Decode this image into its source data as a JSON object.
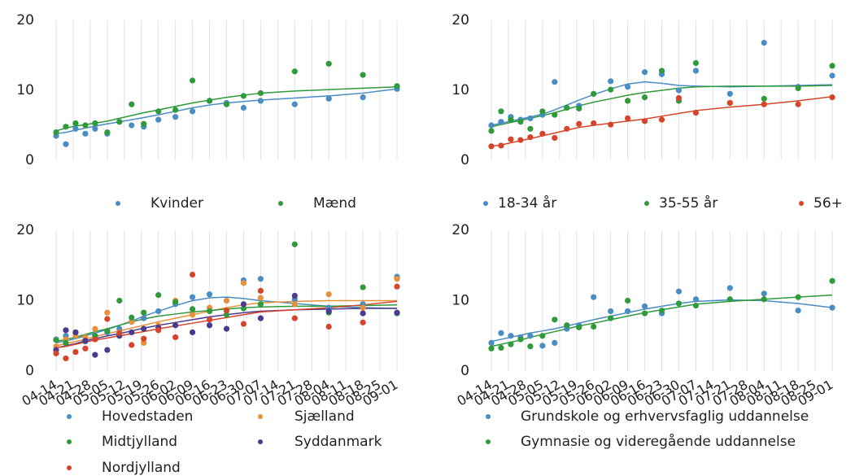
{
  "chart_data": [
    {
      "type": "scatter",
      "xlim": [
        "04-11",
        "09-05"
      ],
      "ylim": [
        0,
        20
      ],
      "yticks": [
        0,
        10,
        20
      ],
      "xticks": [
        "04-14",
        "04-21",
        "04-28",
        "05-05",
        "05-12",
        "05-19",
        "05-26",
        "06-02",
        "06-09",
        "06-16",
        "06-23",
        "06-30",
        "07-07",
        "07-14",
        "07-21",
        "07-28",
        "08-04",
        "08-11",
        "08-18",
        "08-25",
        "09-01"
      ],
      "x": [
        "04-14",
        "04-18",
        "04-22",
        "04-26",
        "04-30",
        "05-05",
        "05-10",
        "05-15",
        "05-20",
        "05-26",
        "06-02",
        "06-09",
        "06-16",
        "06-23",
        "06-30",
        "07-07",
        "07-21",
        "08-04",
        "08-18",
        "09-01"
      ],
      "series": [
        {
          "name": "Kvinder",
          "color": "#4a8cc4",
          "values": [
            3.5,
            2.3,
            4.5,
            3.8,
            4.5,
            3.8,
            5.5,
            5,
            4.8,
            5.8,
            6.2,
            7,
            8.5,
            8.2,
            7.5,
            8.5,
            8,
            8.8,
            9,
            10.2
          ],
          "trend": [
            3.8,
            4.0,
            4.3,
            4.6,
            4.9,
            5.2,
            5.5,
            5.8,
            6.1,
            6.5,
            7.0,
            7.5,
            7.9,
            8.2,
            8.4,
            8.6,
            8.9,
            9.2,
            9.6,
            10.2
          ]
        },
        {
          "name": "Mænd",
          "color": "#2e9a3a",
          "values": [
            4,
            4.8,
            5.3,
            5,
            5.3,
            4,
            5.5,
            8,
            5.2,
            7,
            7.2,
            11.4,
            8.5,
            8,
            9.2,
            9.6,
            12.7,
            13.8,
            12.2,
            10.6
          ],
          "trend": [
            4.2,
            4.6,
            4.9,
            5.1,
            5.3,
            5.6,
            6.0,
            6.4,
            6.8,
            7.2,
            7.7,
            8.2,
            8.6,
            9.0,
            9.3,
            9.6,
            9.9,
            10.1,
            10.3,
            10.5
          ]
        }
      ]
    },
    {
      "type": "scatter",
      "xlim": [
        "04-11",
        "09-05"
      ],
      "ylim": [
        0,
        20
      ],
      "yticks": [
        0,
        10,
        20
      ],
      "xticks": [
        "04-14",
        "04-21",
        "04-28",
        "05-05",
        "05-12",
        "05-19",
        "05-26",
        "06-02",
        "06-09",
        "06-16",
        "06-23",
        "06-30",
        "07-07",
        "07-14",
        "07-21",
        "07-28",
        "08-04",
        "08-11",
        "08-18",
        "08-25",
        "09-01"
      ],
      "x": [
        "04-14",
        "04-18",
        "04-22",
        "04-26",
        "04-30",
        "05-05",
        "05-10",
        "05-15",
        "05-20",
        "05-26",
        "06-02",
        "06-09",
        "06-16",
        "06-23",
        "06-30",
        "07-07",
        "07-21",
        "08-04",
        "08-18",
        "09-01"
      ],
      "series": [
        {
          "name": "18-34 år",
          "color": "#4a8cc4",
          "values": [
            5,
            5.5,
            6.2,
            5.8,
            6,
            6.5,
            11.2,
            7.5,
            7.8,
            9.5,
            11.3,
            10.5,
            12.6,
            12.3,
            10,
            12.8,
            9.5,
            16.8,
            10.5,
            12.1
          ],
          "trend": [
            5.0,
            5.3,
            5.6,
            5.9,
            6.2,
            6.6,
            7.2,
            7.9,
            8.6,
            9.4,
            10.2,
            10.9,
            11.2,
            11.0,
            10.7,
            10.6,
            10.5,
            10.6,
            10.7,
            10.8
          ]
        },
        {
          "name": "35-55 år",
          "color": "#2e9a3a",
          "values": [
            4.2,
            7,
            5.8,
            5.5,
            4.5,
            7,
            6.5,
            7.5,
            7.4,
            9.5,
            10.1,
            8.5,
            9,
            12.8,
            8.5,
            13.9,
            8.2,
            8.8,
            10.3,
            13.5
          ],
          "trend": [
            4.8,
            5.1,
            5.4,
            5.7,
            6.0,
            6.4,
            6.8,
            7.3,
            7.8,
            8.3,
            8.8,
            9.3,
            9.7,
            10.0,
            10.3,
            10.5,
            10.6,
            10.6,
            10.6,
            10.7
          ]
        },
        {
          "name": "56+",
          "color": "#d6452b",
          "values": [
            2,
            2.1,
            3,
            2.9,
            3.3,
            3.8,
            3.2,
            4.5,
            5.2,
            5.3,
            5.1,
            6,
            5.6,
            5.8,
            8.9,
            6.8,
            8.2,
            8.0,
            8,
            9
          ],
          "trend": [
            2.0,
            2.2,
            2.5,
            2.8,
            3.1,
            3.5,
            3.9,
            4.3,
            4.7,
            5.0,
            5.3,
            5.6,
            5.9,
            6.3,
            6.7,
            7.1,
            7.6,
            8.0,
            8.5,
            9.1
          ]
        }
      ]
    },
    {
      "type": "scatter",
      "xlim": [
        "04-11",
        "09-05"
      ],
      "ylim": [
        0,
        20
      ],
      "yticks": [
        0,
        10,
        20
      ],
      "xticks": [
        "04-14",
        "04-21",
        "04-28",
        "05-05",
        "05-12",
        "05-19",
        "05-26",
        "06-02",
        "06-09",
        "06-16",
        "06-23",
        "06-30",
        "07-07",
        "07-14",
        "07-21",
        "07-28",
        "08-04",
        "08-11",
        "08-18",
        "08-25",
        "09-01"
      ],
      "x": [
        "04-14",
        "04-18",
        "04-22",
        "04-26",
        "04-30",
        "05-05",
        "05-10",
        "05-15",
        "05-20",
        "05-26",
        "06-02",
        "06-09",
        "06-16",
        "06-23",
        "06-30",
        "07-07",
        "07-21",
        "08-04",
        "08-18",
        "09-01"
      ],
      "series": [
        {
          "name": "Hovedstaden",
          "color": "#4a8cc4",
          "values": [
            4.5,
            5,
            5.5,
            4.2,
            5,
            5.5,
            6,
            7,
            7.5,
            8.5,
            9.5,
            10.5,
            10.9,
            10,
            12.9,
            13.1,
            10.2,
            9,
            9.5,
            13.4
          ],
          "trend": [
            4.0,
            4.3,
            4.6,
            5.0,
            5.4,
            5.9,
            6.5,
            7.1,
            7.8,
            8.5,
            9.3,
            10.0,
            10.4,
            10.5,
            10.3,
            10.0,
            9.6,
            9.2,
            9.0,
            8.9
          ]
        },
        {
          "name": "Sjælland",
          "color": "#e8913a",
          "values": [
            3.5,
            4.5,
            5,
            4.8,
            6,
            8.3,
            5.5,
            7,
            4,
            6.5,
            10,
            8,
            9,
            10,
            12.5,
            10.4,
            9.5,
            10.9,
            9,
            13.1
          ],
          "trend": [
            3.6,
            3.9,
            4.2,
            4.5,
            4.9,
            5.3,
            5.7,
            6.1,
            6.5,
            7.0,
            7.5,
            8.0,
            8.5,
            9.0,
            9.4,
            9.7,
            9.9,
            10.0,
            10.0,
            10.0
          ]
        },
        {
          "name": "Midtjylland",
          "color": "#2e9a3a",
          "values": [
            4.4,
            4,
            5.5,
            4.3,
            5,
            5.7,
            10,
            7.6,
            8.3,
            10.8,
            9.8,
            8.8,
            8.5,
            8,
            8.9,
            9.5,
            18,
            8.3,
            11.9,
            8.2
          ],
          "trend": [
            4.2,
            4.5,
            4.8,
            5.2,
            5.6,
            6.0,
            6.5,
            7.0,
            7.4,
            7.8,
            8.1,
            8.4,
            8.6,
            8.8,
            9.0,
            9.1,
            9.2,
            9.2,
            9.3,
            9.4
          ]
        },
        {
          "name": "Syddanmark",
          "color": "#4b3a8f",
          "values": [
            3,
            5.8,
            5.5,
            4.3,
            2.3,
            3,
            5,
            5.5,
            6,
            6.2,
            6.5,
            5.5,
            6.5,
            6,
            9.5,
            7.5,
            10.7,
            8.5,
            8.2,
            8.3
          ],
          "trend": [
            3.3,
            3.6,
            3.9,
            4.3,
            4.6,
            5.0,
            5.3,
            5.7,
            6.1,
            6.5,
            6.9,
            7.3,
            7.7,
            8.0,
            8.3,
            8.5,
            8.7,
            8.8,
            8.9,
            8.9
          ]
        },
        {
          "name": "Nordjylland",
          "color": "#d6452b",
          "values": [
            2.5,
            1.8,
            2.7,
            3.2,
            4.5,
            7.4,
            5.4,
            3.7,
            4.6,
            5.8,
            4.8,
            13.7,
            7.3,
            8.6,
            6.7,
            11.4,
            7.5,
            6.3,
            6.9,
            12
          ],
          "trend": [
            3.3,
            3.5,
            3.8,
            4.1,
            4.4,
            4.7,
            5.0,
            5.3,
            5.6,
            6.0,
            6.4,
            6.8,
            7.2,
            7.6,
            8.0,
            8.4,
            8.7,
            9.0,
            9.4,
            9.9
          ]
        }
      ]
    },
    {
      "type": "scatter",
      "xlim": [
        "04-11",
        "09-05"
      ],
      "ylim": [
        0,
        20
      ],
      "yticks": [
        0,
        10,
        20
      ],
      "xticks": [
        "04-14",
        "04-21",
        "04-28",
        "05-05",
        "05-12",
        "05-19",
        "05-26",
        "06-02",
        "06-09",
        "06-16",
        "06-23",
        "06-30",
        "07-07",
        "07-14",
        "07-21",
        "07-28",
        "08-04",
        "08-11",
        "08-18",
        "08-25",
        "09-01"
      ],
      "x": [
        "04-14",
        "04-18",
        "04-22",
        "04-26",
        "04-30",
        "05-05",
        "05-10",
        "05-15",
        "05-20",
        "05-26",
        "06-02",
        "06-09",
        "06-16",
        "06-23",
        "06-30",
        "07-07",
        "07-21",
        "08-04",
        "08-18",
        "09-01"
      ],
      "series": [
        {
          "name": "Grundskole og erhvervsfaglig uddannelse",
          "color": "#4a8cc4",
          "values": [
            4,
            5.4,
            5,
            4.8,
            5,
            3.6,
            4,
            6,
            6.5,
            10.5,
            8.5,
            8.5,
            9.2,
            8.2,
            11.3,
            10.2,
            11.8,
            11,
            8.6,
            9
          ],
          "trend": [
            4.2,
            4.5,
            4.8,
            5.1,
            5.4,
            5.7,
            6.0,
            6.4,
            6.8,
            7.3,
            7.8,
            8.3,
            8.8,
            9.2,
            9.6,
            9.9,
            10.1,
            10.0,
            9.6,
            9.0
          ]
        },
        {
          "name": "Gymnasie og videregående uddannelse",
          "color": "#2e9a3a",
          "values": [
            3.2,
            3.3,
            3.8,
            4.5,
            3.5,
            5,
            7.3,
            6.5,
            6.2,
            6.3,
            7.5,
            10,
            8.2,
            8.6,
            9.6,
            9.3,
            10.2,
            10.2,
            10.5,
            12.8
          ],
          "trend": [
            3.5,
            3.8,
            4.1,
            4.4,
            4.8,
            5.2,
            5.6,
            6.0,
            6.4,
            6.8,
            7.3,
            7.8,
            8.3,
            8.7,
            9.1,
            9.5,
            9.9,
            10.2,
            10.5,
            10.8
          ]
        }
      ]
    }
  ]
}
